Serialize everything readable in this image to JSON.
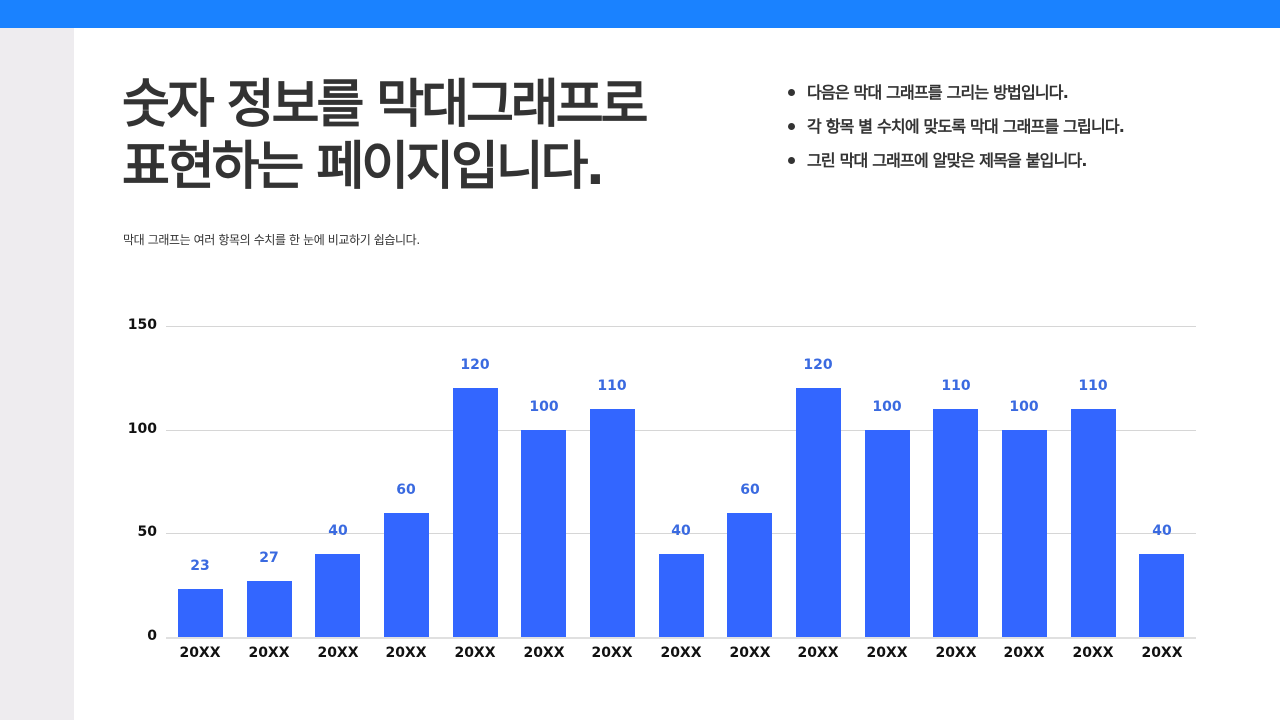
{
  "header": {
    "title_lines": [
      "숫자 정보를 막대그래프로",
      "표현하는 페이지입니다."
    ],
    "subtitle": "막대 그래프는 여러 항목의 수치를 한 눈에 비교하기 쉽습니다."
  },
  "bullets": [
    "다음은 막대 그래프를 그리는 방법입니다.",
    "각 항목 별 수치에 맞도록 막대 그래프를 그립니다.",
    "그린 막대 그래프에 알맞은 제목을 붙입니다."
  ],
  "colors": {
    "topbar": "#1A82FF",
    "sidebar": "#EEECEF",
    "bar": "#3366FF",
    "bar_label": "#3A6AE0",
    "text": "#333333"
  },
  "chart_data": {
    "type": "bar",
    "title": "",
    "xlabel": "",
    "ylabel": "",
    "categories": [
      "20XX",
      "20XX",
      "20XX",
      "20XX",
      "20XX",
      "20XX",
      "20XX",
      "20XX",
      "20XX",
      "20XX",
      "20XX",
      "20XX",
      "20XX",
      "20XX",
      "20XX"
    ],
    "values": [
      23,
      27,
      40,
      60,
      120,
      100,
      110,
      40,
      60,
      120,
      100,
      110,
      100,
      110,
      40
    ],
    "ylim": [
      0,
      150
    ],
    "yticks": [
      0,
      50,
      100,
      150
    ],
    "grid": true,
    "data_labels": true,
    "legend": null
  }
}
